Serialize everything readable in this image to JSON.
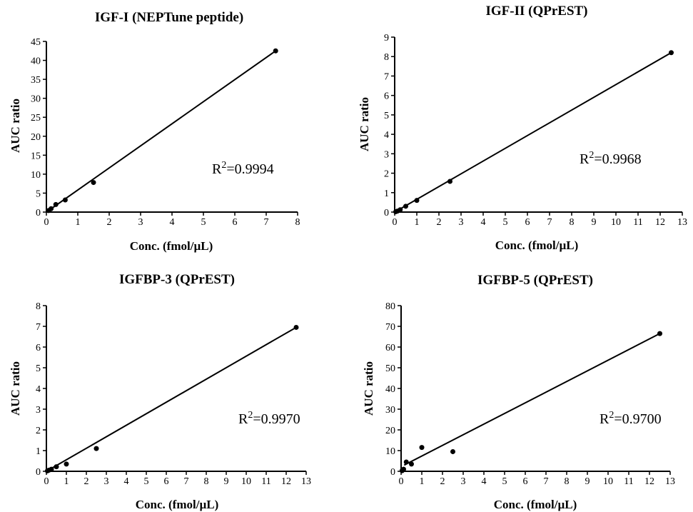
{
  "chart_data": [
    {
      "type": "scatter",
      "title": "IGF-I (NEPTune peptide)",
      "xlabel": "Conc. (fmol/µL)",
      "ylabel": "AUC ratio",
      "xlim": [
        0,
        8
      ],
      "ylim": [
        0,
        45
      ],
      "xticks": [
        0,
        1,
        2,
        3,
        4,
        5,
        6,
        7,
        8
      ],
      "yticks": [
        0,
        5,
        10,
        15,
        20,
        25,
        30,
        35,
        40,
        45
      ],
      "points": [
        [
          0.07,
          0.4
        ],
        [
          0.15,
          0.9
        ],
        [
          0.3,
          2.0
        ],
        [
          0.6,
          3.2
        ],
        [
          1.5,
          7.8
        ],
        [
          7.3,
          42.5
        ]
      ],
      "fit_line": [
        [
          0,
          0
        ],
        [
          7.3,
          42.5
        ]
      ],
      "annotation": {
        "prefix": "R",
        "sup": "2",
        "value": "=0.9994"
      }
    },
    {
      "type": "scatter",
      "title": "IGF-II (QPrEST)",
      "xlabel": "Conc. (fmol/µL)",
      "ylabel": "AUC ratio",
      "xlim": [
        0,
        13
      ],
      "ylim": [
        0,
        9
      ],
      "xticks": [
        0,
        1,
        2,
        3,
        4,
        5,
        6,
        7,
        8,
        9,
        10,
        11,
        12,
        13
      ],
      "yticks": [
        0,
        1,
        2,
        3,
        4,
        5,
        6,
        7,
        8,
        9
      ],
      "points": [
        [
          0.05,
          0.02
        ],
        [
          0.12,
          0.05
        ],
        [
          0.25,
          0.12
        ],
        [
          0.5,
          0.3
        ],
        [
          1.0,
          0.6
        ],
        [
          2.5,
          1.58
        ],
        [
          12.5,
          8.2
        ]
      ],
      "fit_line": [
        [
          0,
          0
        ],
        [
          12.5,
          8.2
        ]
      ],
      "annotation": {
        "prefix": "R",
        "sup": "2",
        "value": "=0.9968"
      }
    },
    {
      "type": "scatter",
      "title": "IGFBP-3 (QPrEST)",
      "xlabel": "Conc. (fmol/µL)",
      "ylabel": "AUC ratio",
      "xlim": [
        0,
        13
      ],
      "ylim": [
        0,
        8
      ],
      "xticks": [
        0,
        1,
        2,
        3,
        4,
        5,
        6,
        7,
        8,
        9,
        10,
        11,
        12,
        13
      ],
      "yticks": [
        0,
        1,
        2,
        3,
        4,
        5,
        6,
        7,
        8
      ],
      "points": [
        [
          0.05,
          0.02
        ],
        [
          0.12,
          0.05
        ],
        [
          0.25,
          0.1
        ],
        [
          0.5,
          0.22
        ],
        [
          1.0,
          0.35
        ],
        [
          2.5,
          1.1
        ],
        [
          12.5,
          6.95
        ]
      ],
      "fit_line": [
        [
          0,
          0
        ],
        [
          12.5,
          6.95
        ]
      ],
      "annotation": {
        "prefix": "R",
        "sup": "2",
        "value": "=0.9970"
      }
    },
    {
      "type": "scatter",
      "title": "IGFBP-5 (QPrEST)",
      "xlabel": "Conc. (fmol/µL)",
      "ylabel": "AUC ratio",
      "xlim": [
        0,
        13
      ],
      "ylim": [
        0,
        80
      ],
      "xticks": [
        0,
        1,
        2,
        3,
        4,
        5,
        6,
        7,
        8,
        9,
        10,
        11,
        12,
        13
      ],
      "yticks": [
        0,
        10,
        20,
        30,
        40,
        50,
        60,
        70,
        80
      ],
      "points": [
        [
          0.05,
          0.3
        ],
        [
          0.12,
          1.0
        ],
        [
          0.25,
          4.5
        ],
        [
          0.5,
          3.5
        ],
        [
          1.0,
          11.5
        ],
        [
          2.5,
          9.5
        ],
        [
          12.5,
          66.5
        ]
      ],
      "fit_line": [
        [
          0.15,
          3.0
        ],
        [
          12.5,
          66.5
        ]
      ],
      "annotation": {
        "prefix": "R",
        "sup": "2",
        "value": "=0.9700"
      }
    }
  ]
}
